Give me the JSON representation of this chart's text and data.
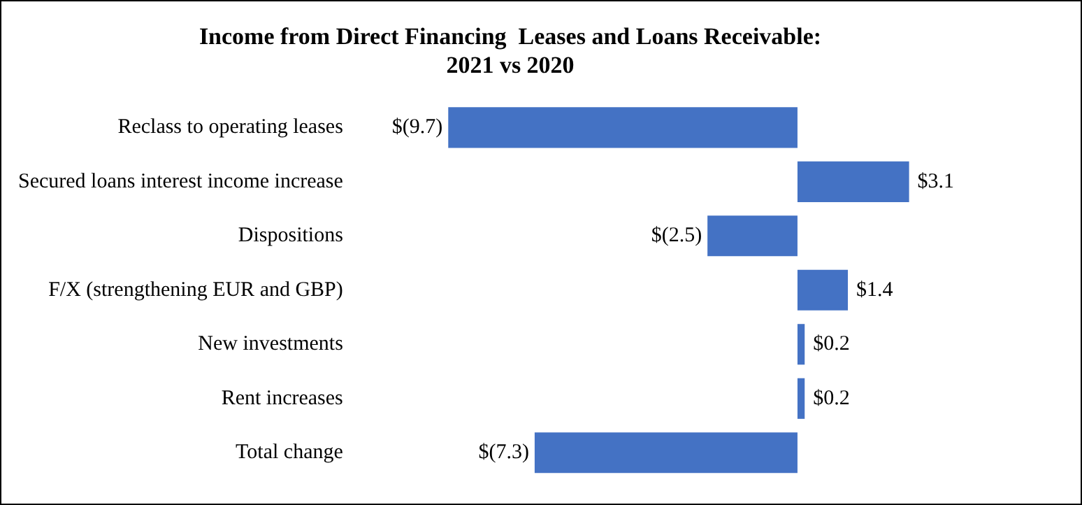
{
  "chart_data": {
    "type": "bar",
    "orientation": "horizontal",
    "title": "Income from Direct Financing  Leases and Loans Receivable:\n2021 vs 2020",
    "categories": [
      "Reclass to operating leases",
      "Secured loans interest income increase",
      "Dispositions",
      "F/X (strengthening EUR and GBP)",
      "New investments",
      "Rent increases",
      "Total change"
    ],
    "values": [
      -9.7,
      3.1,
      -2.5,
      1.4,
      0.2,
      0.2,
      -7.3
    ],
    "value_labels": [
      "$(9.7)",
      "$3.1",
      "$(2.5)",
      "$1.4",
      "$0.2",
      "$0.2",
      "$(7.3)"
    ],
    "color": "#4472c4",
    "grid": false,
    "legend": false,
    "tick_labels": "y"
  }
}
